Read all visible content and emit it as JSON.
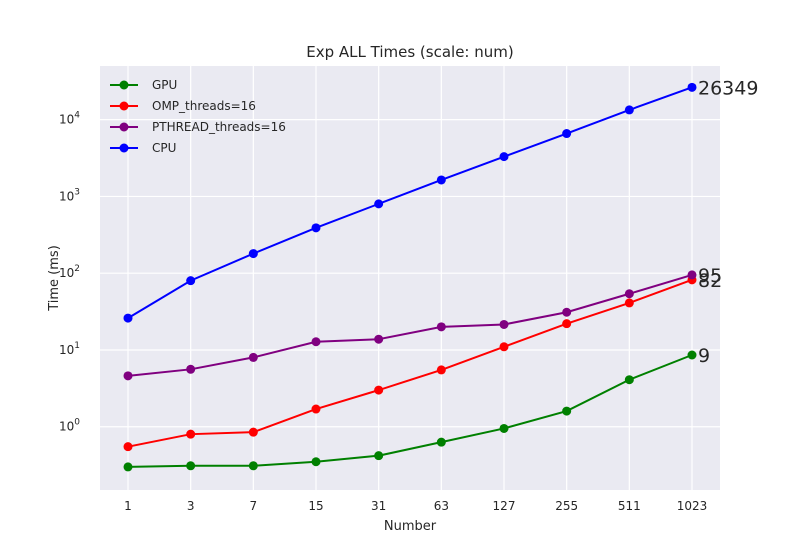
{
  "chart_data": {
    "type": "line",
    "title": "Exp ALL Times (scale: num)",
    "xlabel": "Number",
    "ylabel": "Time (ms)",
    "x_scale": "categorical",
    "y_scale": "log",
    "categories": [
      "1",
      "3",
      "7",
      "15",
      "31",
      "63",
      "127",
      "255",
      "511",
      "1023"
    ],
    "ylim": [
      0.15,
      50000
    ],
    "y_ticks": [
      {
        "value": 1,
        "base": "10",
        "exp": "0"
      },
      {
        "value": 10,
        "base": "10",
        "exp": "1"
      },
      {
        "value": 100,
        "base": "10",
        "exp": "2"
      },
      {
        "value": 1000,
        "base": "10",
        "exp": "3"
      },
      {
        "value": 10000,
        "base": "10",
        "exp": "4"
      }
    ],
    "grid": true,
    "legend_position": "top-left",
    "series": [
      {
        "name": "GPU",
        "color": "#008000",
        "values": [
          0.3,
          0.31,
          0.31,
          0.35,
          0.42,
          0.63,
          0.95,
          1.6,
          4.1,
          8.6
        ],
        "end_label": "9"
      },
      {
        "name": "OMP_threads=16",
        "color": "#ff0000",
        "values": [
          0.55,
          0.8,
          0.85,
          1.7,
          3.0,
          5.5,
          11,
          22,
          41,
          82
        ],
        "end_label": "82"
      },
      {
        "name": "PTHREAD_threads=16",
        "color": "#800080",
        "values": [
          4.6,
          5.6,
          8.0,
          12.8,
          13.8,
          20,
          21.5,
          31,
          54,
          95
        ],
        "end_label": "95"
      },
      {
        "name": "CPU",
        "color": "#0000ff",
        "values": [
          26,
          80,
          180,
          390,
          800,
          1640,
          3300,
          6600,
          13400,
          26349
        ],
        "end_label": "26349"
      }
    ]
  }
}
